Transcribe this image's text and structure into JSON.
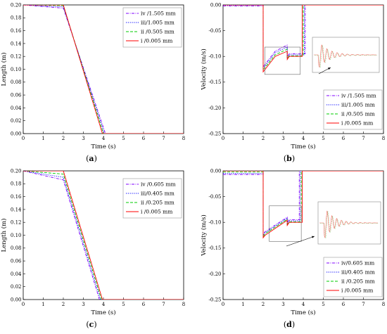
{
  "chart_data": [
    {
      "type": "line",
      "panel": "a",
      "caption_label": "a",
      "xlabel": "Time (s)",
      "ylabel": "Length (m)",
      "xlim": [
        0,
        8
      ],
      "ylim": [
        0,
        0.2
      ],
      "xticks": [
        "0",
        "1",
        "2",
        "3",
        "4",
        "5",
        "6",
        "7",
        "8"
      ],
      "yticks": [
        "0.00",
        "0.02",
        "0.04",
        "0.06",
        "0.08",
        "0.10",
        "0.12",
        "0.14",
        "0.16",
        "0.18",
        "0.20"
      ],
      "legend_position": "top-right",
      "series": [
        {
          "name": "iv /1.505 mm",
          "color": "#8000ff",
          "dash": "dashdot",
          "x": [
            0,
            2,
            4.1,
            8
          ],
          "y": [
            0.2,
            0.195,
            0,
            0
          ]
        },
        {
          "name": "iii/1.005 mm",
          "color": "#0000ff",
          "dash": "dot",
          "x": [
            0,
            2,
            4.05,
            8
          ],
          "y": [
            0.2,
            0.197,
            0,
            0
          ]
        },
        {
          "name": "ii /0.505 mm",
          "color": "#00cc00",
          "dash": "dash",
          "x": [
            0,
            2,
            4.0,
            8
          ],
          "y": [
            0.2,
            0.199,
            0,
            0
          ]
        },
        {
          "name": "i /0.005 mm",
          "color": "#ff0000",
          "dash": "solid",
          "x": [
            0,
            2,
            3.95,
            8
          ],
          "y": [
            0.2,
            0.2,
            0,
            0
          ]
        }
      ]
    },
    {
      "type": "line",
      "panel": "b",
      "caption_label": "b",
      "xlabel": "Time (s)",
      "ylabel": "Velocity (m/s)",
      "xlim": [
        0,
        8
      ],
      "ylim": [
        -0.25,
        0.0
      ],
      "xticks": [
        "0",
        "1",
        "2",
        "3",
        "4",
        "5",
        "6",
        "7",
        "8"
      ],
      "yticks": [
        "0.00",
        "-0.05",
        "-0.10",
        "-0.15",
        "-0.20",
        "-0.25"
      ],
      "legend_position": "bottom-right",
      "series": [
        {
          "name": "iv /1.505 mm",
          "color": "#8000ff",
          "dash": "dashdot",
          "x": [
            0,
            2,
            2,
            2.6,
            3.2,
            3.2,
            3.3,
            4.1,
            4.1,
            8
          ],
          "y": [
            -0.002,
            -0.002,
            -0.12,
            -0.09,
            -0.078,
            -0.1,
            -0.095,
            -0.095,
            0,
            0
          ]
        },
        {
          "name": "iii/1.005 mm",
          "color": "#0000ff",
          "dash": "dot",
          "x": [
            0,
            2,
            2,
            2.6,
            3.2,
            3.2,
            3.3,
            4.05,
            4.05,
            8
          ],
          "y": [
            -0.001,
            -0.001,
            -0.123,
            -0.093,
            -0.082,
            -0.102,
            -0.097,
            -0.097,
            0,
            0
          ]
        },
        {
          "name": "ii /0.505 mm",
          "color": "#00cc00",
          "dash": "dash",
          "x": [
            0,
            2,
            2,
            2.6,
            3.2,
            3.2,
            3.3,
            4.0,
            4.0,
            8
          ],
          "y": [
            0,
            0,
            -0.126,
            -0.097,
            -0.086,
            -0.104,
            -0.099,
            -0.099,
            0,
            0
          ]
        },
        {
          "name": "i /0.005 mm",
          "color": "#ff0000",
          "dash": "solid",
          "x": [
            0,
            2,
            2,
            2.6,
            3.2,
            3.2,
            3.3,
            3.95,
            3.95,
            8
          ],
          "y": [
            0,
            0,
            -0.13,
            -0.1,
            -0.09,
            -0.106,
            -0.1,
            -0.1,
            0,
            0
          ]
        }
      ]
    },
    {
      "type": "line",
      "panel": "c",
      "caption_label": "c",
      "xlabel": "Time (s)",
      "ylabel": "Length (m)",
      "xlim": [
        0,
        8
      ],
      "ylim": [
        0,
        0.2
      ],
      "xticks": [
        "0",
        "1",
        "2",
        "3",
        "4",
        "5",
        "6",
        "7",
        "8"
      ],
      "yticks": [
        "0.00",
        "0.02",
        "0.04",
        "0.06",
        "0.08",
        "0.10",
        "0.12",
        "0.14",
        "0.16",
        "0.18",
        "0.20"
      ],
      "legend_position": "top-right",
      "series": [
        {
          "name": "iv /0.605 mm",
          "color": "#8000ff",
          "dash": "dashdot",
          "x": [
            0,
            2,
            3.8,
            8
          ],
          "y": [
            0.2,
            0.186,
            0,
            0
          ]
        },
        {
          "name": "iii/0.405 mm",
          "color": "#0000ff",
          "dash": "dot",
          "x": [
            0,
            2,
            3.85,
            8
          ],
          "y": [
            0.2,
            0.19,
            0,
            0
          ]
        },
        {
          "name": "ii /0.205 mm",
          "color": "#00cc00",
          "dash": "dash",
          "x": [
            0,
            2,
            3.9,
            8
          ],
          "y": [
            0.2,
            0.195,
            0,
            0
          ]
        },
        {
          "name": "i /0.005 mm",
          "color": "#ff0000",
          "dash": "solid",
          "x": [
            0,
            2,
            3.95,
            8
          ],
          "y": [
            0.2,
            0.2,
            0,
            0
          ]
        }
      ]
    },
    {
      "type": "line",
      "panel": "d",
      "caption_label": "d",
      "xlabel": "Time (s)",
      "ylabel": "Velocity (m/s)",
      "xlim": [
        0,
        8
      ],
      "ylim": [
        -0.25,
        0.0
      ],
      "xticks": [
        "0",
        "1",
        "2",
        "3",
        "4",
        "5",
        "6",
        "7",
        "8"
      ],
      "yticks": [
        "0.00",
        "-0.05",
        "-0.10",
        "-0.15",
        "-0.20",
        "-0.25"
      ],
      "legend_position": "bottom-right",
      "series": [
        {
          "name": "iv/0.605 mm",
          "color": "#8000ff",
          "dash": "dashdot",
          "x": [
            0,
            2,
            2,
            2.1,
            3.2,
            3.2,
            3.3,
            3.8,
            3.8,
            8
          ],
          "y": [
            -0.007,
            -0.007,
            -0.123,
            -0.118,
            -0.09,
            -0.1,
            -0.095,
            -0.095,
            0,
            0
          ]
        },
        {
          "name": "iii/0.405 mm",
          "color": "#0000ff",
          "dash": "dot",
          "x": [
            0,
            2,
            2,
            2.1,
            3.2,
            3.2,
            3.3,
            3.85,
            3.85,
            8
          ],
          "y": [
            -0.005,
            -0.005,
            -0.125,
            -0.12,
            -0.092,
            -0.102,
            -0.097,
            -0.097,
            0,
            0
          ]
        },
        {
          "name": "ii /0.205 mm",
          "color": "#00cc00",
          "dash": "dash",
          "x": [
            0,
            2,
            2,
            2.1,
            3.2,
            3.2,
            3.3,
            3.9,
            3.9,
            8
          ],
          "y": [
            -0.002,
            -0.002,
            -0.128,
            -0.122,
            -0.094,
            -0.104,
            -0.099,
            -0.099,
            0,
            0
          ]
        },
        {
          "name": "i /0.005 mm",
          "color": "#ff0000",
          "dash": "solid",
          "x": [
            0,
            2,
            2,
            2.1,
            3.2,
            3.2,
            3.3,
            3.95,
            3.95,
            8
          ],
          "y": [
            0,
            0,
            -0.13,
            -0.125,
            -0.096,
            -0.106,
            -0.1,
            -0.1,
            0,
            0
          ]
        }
      ]
    }
  ]
}
